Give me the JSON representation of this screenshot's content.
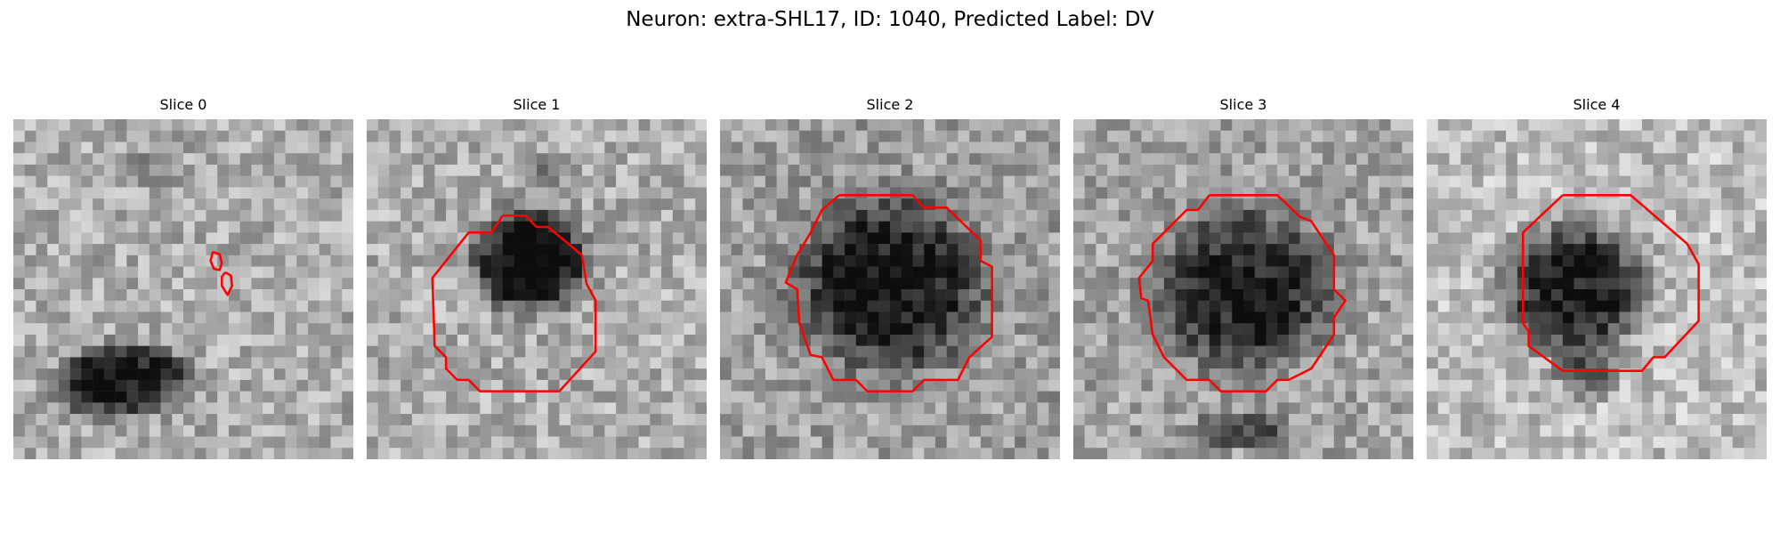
{
  "figure": {
    "title": "Neuron: extra-SHL17, ID: 1040, Predicted Label: DV"
  },
  "panels": [
    {
      "title": "Slice 0",
      "contour_color": "#ff0000"
    },
    {
      "title": "Slice 1",
      "contour_color": "#ff0000"
    },
    {
      "title": "Slice 2",
      "contour_color": "#ff0000"
    },
    {
      "title": "Slice 3",
      "contour_color": "#ff0000"
    },
    {
      "title": "Slice 4",
      "contour_color": "#ff0000"
    }
  ]
}
